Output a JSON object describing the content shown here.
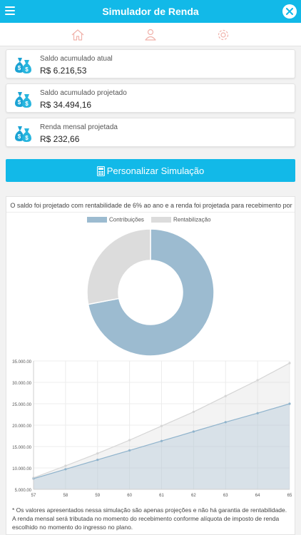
{
  "header": {
    "title": "Simulador de Renda"
  },
  "icons": {
    "menu": "hamburger-menu-icon",
    "close": "close-icon",
    "home": "home-icon",
    "user": "user-icon",
    "settings": "gear-icon",
    "money": "money-bag-icon",
    "calculator": "calculator-icon"
  },
  "colors": {
    "accent": "#12b9e8",
    "contribuicoes": "#9cbbd0",
    "rentabilizacao": "#dcdcdc",
    "tab_icon": "#f0b2ab"
  },
  "cards": [
    {
      "label": "Saldo acumulado atual",
      "value": "R$ 6.216,53"
    },
    {
      "label": "Saldo acumulado projetado",
      "value": "R$ 34.494,16"
    },
    {
      "label": "Renda mensal projetada",
      "value": "R$ 232,66"
    }
  ],
  "button": {
    "label": "Personalizar Simulação"
  },
  "panel": {
    "intro": "O saldo foi projetado com rentabilidade de 6% ao ano e a renda foi projetada para recebimento por",
    "notes": [
      "* Os valores apresentados nessa simulação são apenas projeções e não há garantia de rentabilidade.",
      "A renda mensal será tributada no momento do recebimento conforme alíquota de imposto de renda escolhido no momento do ingresso no plano."
    ]
  },
  "chart_data": [
    {
      "type": "pie",
      "legend": [
        "Contribuições",
        "Rentabilização"
      ],
      "legend_position": "top",
      "values": [
        72,
        28
      ],
      "colors": [
        "#9cbbd0",
        "#dcdcdc"
      ]
    },
    {
      "type": "area",
      "x": [
        57,
        58,
        59,
        60,
        61,
        62,
        63,
        64,
        65
      ],
      "series": [
        {
          "name": "Rentabilização",
          "values": [
            7700,
            10500,
            13400,
            16500,
            19800,
            23100,
            26800,
            30500,
            34494
          ],
          "color": "#dcdcdc"
        },
        {
          "name": "Contribuições",
          "values": [
            7500,
            9700,
            11900,
            14100,
            16300,
            18500,
            20700,
            22800,
            25000
          ],
          "color": "#9cbbd0"
        }
      ],
      "yticks": [
        "5.000.00",
        "10.000.00",
        "15.000.00",
        "20.000.00",
        "25.000.00",
        "30.000.00",
        "35.000.00"
      ],
      "ylim": [
        5000,
        35000
      ],
      "grid": true
    }
  ]
}
